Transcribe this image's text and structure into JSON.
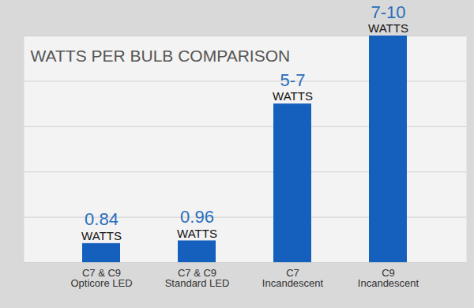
{
  "chart_data": {
    "type": "bar",
    "title": "WATTS PER BULB COMPARISON",
    "categories": [
      "C7 & C9\nOpticore LED",
      "C7 & C9\nStandard LED",
      "C7\nIncandescent",
      "C9\nIncandescent"
    ],
    "values": [
      0.84,
      0.96,
      7,
      10
    ],
    "value_labels": [
      "0.84",
      "0.96",
      "5-7",
      "7-10"
    ],
    "unit": "WATTS",
    "color": "#1660bd",
    "ylim": [
      0,
      10
    ],
    "yticks": [
      0,
      2,
      4,
      6,
      8,
      10
    ],
    "grid": true,
    "data_labels": true,
    "tick_labels": "x"
  }
}
